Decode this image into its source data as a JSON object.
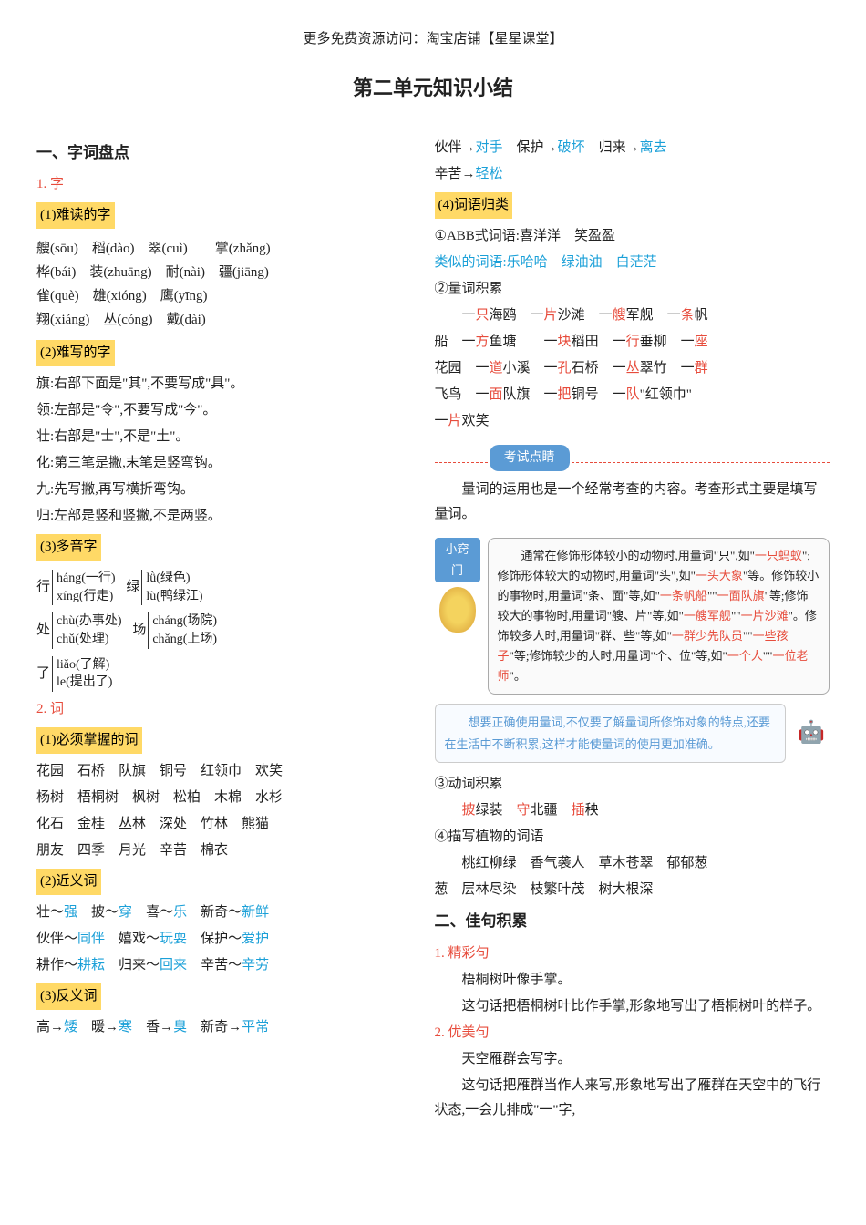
{
  "header": "更多免费资源访问：淘宝店铺【星星课堂】",
  "title": "第二单元知识小结",
  "s1": {
    "h": "一、字词盘点",
    "n1": "1. 字",
    "sub1": "(1)难读的字",
    "hard_read": [
      "艘(sōu)　稻(dào)　翠(cuì)　　掌(zhǎng)",
      "桦(bái)　装(zhuāng)　耐(nài)　疆(jiāng)",
      "雀(què)　雄(xióng)　鹰(yīng)",
      "翔(xiáng)　丛(cóng)　戴(dài)"
    ],
    "sub2": "(2)难写的字",
    "hard_write": [
      "旗:右部下面是\"其\",不要写成\"具\"。",
      "领:左部是\"令\",不要写成\"今\"。",
      "壮:右部是\"士\",不是\"土\"。",
      "化:第三笔是撇,末笔是竖弯钩。",
      "九:先写撇,再写横折弯钩。",
      "归:左部是竖和竖撇,不是两竖。"
    ],
    "sub3": "(3)多音字",
    "poly": {
      "xing1": "háng(一行)",
      "xing2": "xíng(行走)",
      "lv1": "lǜ(绿色)",
      "lv2": "lù(鸭绿江)",
      "chu1": "chù(办事处)",
      "chu2": "chǔ(处理)",
      "chang1": "cháng(场院)",
      "chang2": "chǎng(上场)",
      "liao1": "liǎo(了解)",
      "liao2": "le(提出了)"
    },
    "n2": "2. 词",
    "sub4": "(1)必须掌握的词",
    "must_words": [
      "花园　石桥　队旗　铜号　红领巾　欢笑",
      "杨树　梧桐树　枫树　松柏　木棉　水杉",
      "化石　金桂　丛林　深处　竹林　熊猫",
      "朋友　四季　月光　辛苦　棉衣"
    ],
    "sub5": "(2)近义词",
    "syn": [
      {
        "a": "壮～",
        "b": "强"
      },
      {
        "a": "　披～",
        "b": "穿"
      },
      {
        "a": "　喜～",
        "b": "乐"
      },
      {
        "a": "　新奇～",
        "b": "新鲜"
      }
    ],
    "syn2": [
      {
        "a": "伙伴～",
        "b": "同伴"
      },
      {
        "a": "　嬉戏～",
        "b": "玩耍"
      },
      {
        "a": "　保护～",
        "b": "爱护"
      }
    ],
    "syn3": [
      {
        "a": "耕作～",
        "b": "耕耘"
      },
      {
        "a": "　归来～",
        "b": "回来"
      },
      {
        "a": "　辛苦～",
        "b": "辛劳"
      }
    ],
    "sub6": "(3)反义词",
    "ant1": [
      {
        "a": "高→",
        "b": "矮"
      },
      {
        "a": "　暖→",
        "b": "寒"
      },
      {
        "a": "　香→",
        "b": "臭"
      },
      {
        "a": "　新奇→",
        "b": "平常"
      }
    ]
  },
  "right": {
    "ant2": [
      {
        "a": "伙伴→",
        "b": "对手"
      },
      {
        "a": "　保护→",
        "b": "破坏"
      },
      {
        "a": "　归来→",
        "b": "离去"
      }
    ],
    "ant3": [
      {
        "a": "辛苦→",
        "b": "轻松"
      }
    ],
    "sub7": "(4)词语归类",
    "abb1": "①ABB式词语:喜洋洋　笑盈盈",
    "abb2a": "类似的词语:",
    "abb2b": "乐哈哈　绿油油　白茫茫",
    "liang_h": "②量词积累",
    "liang_lines": [
      [
        {
          "t": "　　一"
        },
        {
          "c": "只",
          "cl": "red"
        },
        {
          "t": "海鸥　一"
        },
        {
          "c": "片",
          "cl": "red"
        },
        {
          "t": "沙滩　一"
        },
        {
          "c": "艘",
          "cl": "red"
        },
        {
          "t": "军舰　一"
        },
        {
          "c": "条",
          "cl": "red"
        },
        {
          "t": "帆"
        }
      ],
      [
        {
          "t": "船　一"
        },
        {
          "c": "方",
          "cl": "red"
        },
        {
          "t": "鱼塘　　一"
        },
        {
          "c": "块",
          "cl": "red"
        },
        {
          "t": "稻田　一"
        },
        {
          "c": "行",
          "cl": "red"
        },
        {
          "t": "垂柳　一"
        },
        {
          "c": "座",
          "cl": "red"
        }
      ],
      [
        {
          "t": "花园　一"
        },
        {
          "c": "道",
          "cl": "red"
        },
        {
          "t": "小溪　一"
        },
        {
          "c": "孔",
          "cl": "red"
        },
        {
          "t": "石桥　一"
        },
        {
          "c": "丛",
          "cl": "red"
        },
        {
          "t": "翠竹　一"
        },
        {
          "c": "群",
          "cl": "red"
        }
      ],
      [
        {
          "t": "飞鸟　一"
        },
        {
          "c": "面",
          "cl": "red"
        },
        {
          "t": "队旗　一"
        },
        {
          "c": "把",
          "cl": "red"
        },
        {
          "t": "铜号　一"
        },
        {
          "c": "队",
          "cl": "red"
        },
        {
          "t": "\"红领巾\""
        }
      ],
      [
        {
          "t": "一"
        },
        {
          "c": "片",
          "cl": "red"
        },
        {
          "t": "欢笑"
        }
      ]
    ],
    "exam_label": "考试点睛",
    "exam_text": "　　量词的运用也是一个经常考查的内容。考查形式主要是填写量词。",
    "tip_label": "小窍门",
    "tip_text_parts": [
      {
        "t": "　　通常在修饰形体较小的动物时,用量词\"只\",如\""
      },
      {
        "c": "一只蚂蚁",
        "cl": "red"
      },
      {
        "t": "\";修饰形体较大的动物时,用量词\"头\",如\""
      },
      {
        "c": "一头大象",
        "cl": "red"
      },
      {
        "t": "\"等。修饰较小的事物时,用量词\"条、面\"等,如\""
      },
      {
        "c": "一条帆船",
        "cl": "red"
      },
      {
        "t": "\"\""
      },
      {
        "c": "一面队旗",
        "cl": "red"
      },
      {
        "t": "\"等;修饰较大的事物时,用量词\"艘、片\"等,如\""
      },
      {
        "c": "一艘军舰",
        "cl": "red"
      },
      {
        "t": "\"\""
      },
      {
        "c": "一片沙滩",
        "cl": "red"
      },
      {
        "t": "\"。修饰较多人时,用量词\"群、些\"等,如\""
      },
      {
        "c": "一群少先队员",
        "cl": "red"
      },
      {
        "t": "\"\""
      },
      {
        "c": "一些孩子",
        "cl": "red"
      },
      {
        "t": "\"等;修饰较少的人时,用量词\"个、位\"等,如\""
      },
      {
        "c": "一个人",
        "cl": "red"
      },
      {
        "t": "\"\""
      },
      {
        "c": "一位老师",
        "cl": "red"
      },
      {
        "t": "\"。"
      }
    ],
    "tip2": "　　想要正确使用量词,不仅要了解量词所修饰对象的特点,还要在生活中不断积累,这样才能使量词的使用更加准确。",
    "verb_h": "③动词积累",
    "verb_parts": [
      {
        "c": "披",
        "cl": "red"
      },
      {
        "t": "绿装　"
      },
      {
        "c": "守",
        "cl": "red"
      },
      {
        "t": "北疆　"
      },
      {
        "c": "插",
        "cl": "red"
      },
      {
        "t": "秧"
      }
    ],
    "plant_h": "④描写植物的词语",
    "plant_lines": [
      "　　桃红柳绿　香气袭人　草木苍翠　郁郁葱",
      "葱　层林尽染　枝繁叶茂　树大根深"
    ],
    "s2h": "二、佳句积累",
    "s2n1": "1. 精彩句",
    "s2p1": "　　梧桐树叶像手掌。",
    "s2p2": "　　这句话把梧桐树叶比作手掌,形象地写出了梧桐树叶的样子。",
    "s2n2": "2. 优美句",
    "s2p3": "　　天空雁群会写字。",
    "s2p4": "　　这句话把雁群当作人来写,形象地写出了雁群在天空中的飞行状态,一会儿排成\"一\"字,"
  }
}
